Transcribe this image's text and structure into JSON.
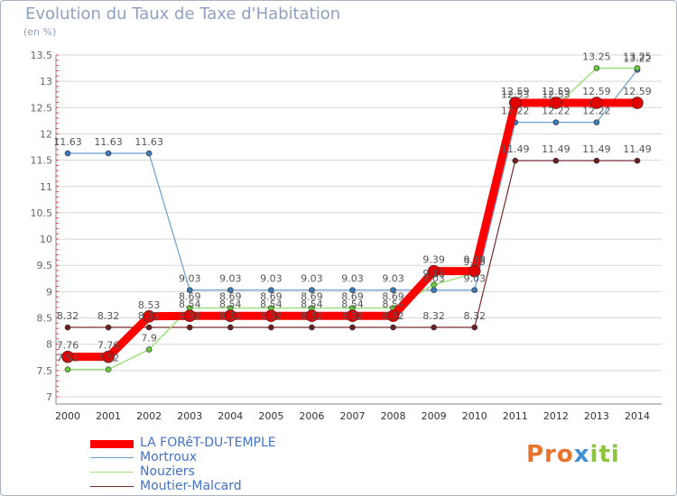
{
  "chart_data": {
    "type": "line",
    "title": "Evolution du Taux de Taxe d'Habitation",
    "subtitle": "(en %)",
    "xlabel": "",
    "ylabel": "",
    "ylim": [
      7,
      13.5
    ],
    "yticks": [
      "7",
      "7.5",
      "8",
      "8.5",
      "9",
      "9.5",
      "10",
      "10.5",
      "11",
      "11.5",
      "12",
      "12.5",
      "13",
      "13.5"
    ],
    "ytick_values": [
      7,
      7.5,
      8,
      8.5,
      9,
      9.5,
      10,
      10.5,
      11,
      11.5,
      12,
      12.5,
      13,
      13.5
    ],
    "categories": [
      "2000",
      "2001",
      "2002",
      "2003",
      "2004",
      "2005",
      "2006",
      "2007",
      "2008",
      "2009",
      "2010",
      "2011",
      "2012",
      "2013",
      "2014"
    ],
    "grid": "y-gridlines",
    "series": [
      {
        "name": "Moutier-Malcard",
        "color": "#7a2a2a",
        "marker_color": "#6b2020",
        "values": [
          8.32,
          8.32,
          8.32,
          8.32,
          8.32,
          8.32,
          8.32,
          8.32,
          8.32,
          8.32,
          8.32,
          11.49,
          11.49,
          11.49,
          11.49
        ],
        "labels": [
          "8.32",
          "8.32",
          "8.32",
          "8.32",
          "8.32",
          "8.32",
          "8.32",
          "8.32",
          "8.32",
          "8.32",
          "8.32",
          "11.49",
          "11.49",
          "11.49",
          "11.49"
        ]
      },
      {
        "name": "Mortroux",
        "color": "#6a9fd0",
        "marker_color": "#3a7ab8",
        "values": [
          11.63,
          11.63,
          11.63,
          9.03,
          9.03,
          9.03,
          9.03,
          9.03,
          9.03,
          9.03,
          9.03,
          12.22,
          12.22,
          12.22,
          13.22
        ],
        "labels": [
          "11.63",
          "11.63",
          "11.63",
          "9.03",
          "9.03",
          "9.03",
          "9.03",
          "9.03",
          "9.03",
          "9.03",
          "9.03",
          "12.22",
          "12.22",
          "12.22",
          "13.22"
        ]
      },
      {
        "name": "Nouziers",
        "color": "#9ee07a",
        "marker_color": "#6cc83c",
        "values": [
          7.52,
          7.52,
          7.9,
          8.69,
          8.69,
          8.69,
          8.69,
          8.69,
          8.69,
          9.13,
          9.35,
          12.53,
          12.53,
          13.25,
          13.25
        ],
        "labels": [
          "7.52",
          "7.52",
          "7.9",
          "8.69",
          "8.69",
          "8.69",
          "8.69",
          "8.69",
          "8.69",
          "9.13",
          "9.35",
          "12.53",
          "12.53",
          "13.25",
          "13.25"
        ]
      },
      {
        "name": "LA FORêT-DU-TEMPLE",
        "color": "#ff0000",
        "marker_color": "#e00000",
        "values": [
          7.76,
          7.76,
          8.53,
          8.54,
          8.54,
          8.54,
          8.54,
          8.54,
          8.54,
          9.39,
          9.39,
          12.59,
          12.59,
          12.59,
          12.59
        ],
        "labels": [
          "7.76",
          "7.76",
          "8.53",
          "8.54",
          "8.54",
          "8.54",
          "8.54",
          "8.54",
          "8.54",
          "9.39",
          "9.39",
          "12.59",
          "12.59",
          "12.59",
          "12.59"
        ]
      }
    ],
    "legend": [
      "LA FORêT-DU-TEMPLE",
      "Mortroux",
      "Nouziers",
      "Moutier-Malcard"
    ],
    "legend_placement": "bottom-left"
  },
  "branding": {
    "logo_parts": [
      "Pro",
      "x",
      "iti"
    ]
  }
}
